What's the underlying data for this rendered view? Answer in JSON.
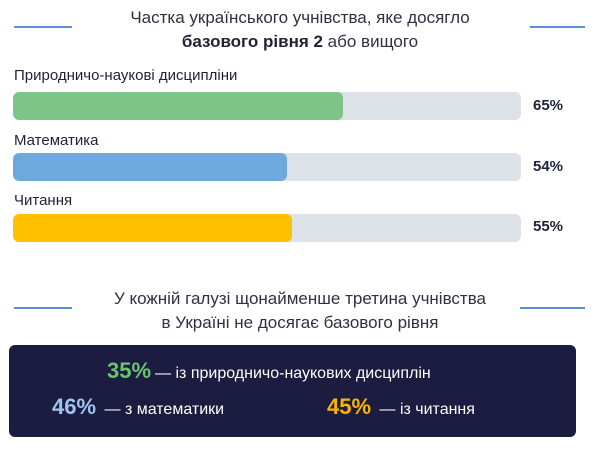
{
  "colors": {
    "science": "#7ec489",
    "math": "#6fa8dc",
    "reading": "#ffc000",
    "track": "#dde1e8",
    "panel": "#1b1c3f",
    "rule": "#5b8fd4"
  },
  "header": {
    "line1": "Частка українського учнівства, яке досягло",
    "line2_bold": "базового рівня 2",
    "line2_rest": " або вищого"
  },
  "chart_data": {
    "type": "bar",
    "orientation": "horizontal",
    "title": "Частка українського учнівства, яке досягло базового рівня 2 або вищого",
    "categories": [
      "Природничо-наукові дисципліни",
      "Математика",
      "Читання"
    ],
    "values": [
      65,
      54,
      55
    ],
    "value_labels": [
      "65%",
      "54%",
      "55%"
    ],
    "xlim": [
      0,
      100
    ],
    "unit": "%"
  },
  "summary": {
    "line1": "У кожній галузі щонайменше третина учнівства",
    "line2": "в Україні не досягає базового рівня"
  },
  "stats": [
    {
      "value": "35%",
      "text": "— із природничо-наукових дисциплін",
      "color": "#6cc36e"
    },
    {
      "value": "46%",
      "text": " — з математики",
      "color": "#9ec5ee"
    },
    {
      "value": "45%",
      "text": " — із читання",
      "color": "#ffb300"
    }
  ]
}
